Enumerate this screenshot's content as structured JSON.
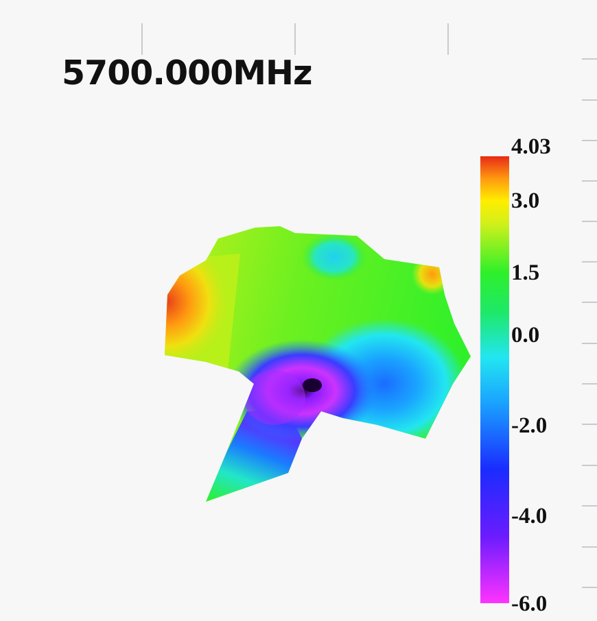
{
  "frequency_label": "5700.000MHz",
  "chart_data": {
    "type": "heatmap",
    "title": "5700.000MHz",
    "colorbar": {
      "min": -6.0,
      "max": 4.03,
      "tick_labels": [
        "4.03",
        "3.0",
        "1.5",
        "0.0",
        "-2.0",
        "-4.0",
        "-6.0"
      ],
      "tick_values": [
        4.03,
        3.0,
        1.5,
        0.0,
        -2.0,
        -4.0,
        -6.0
      ],
      "colormap": [
        {
          "value": -6.0,
          "color": "#ff33ff"
        },
        {
          "value": -4.0,
          "color": "#7a1fff"
        },
        {
          "value": -2.0,
          "color": "#1a2cff"
        },
        {
          "value": -1.0,
          "color": "#1a8cff"
        },
        {
          "value": 0.0,
          "color": "#22e6f0"
        },
        {
          "value": 1.0,
          "color": "#1ee86a"
        },
        {
          "value": 1.5,
          "color": "#2ef02a"
        },
        {
          "value": 2.3,
          "color": "#b8f01a"
        },
        {
          "value": 3.0,
          "color": "#ffee00"
        },
        {
          "value": 3.5,
          "color": "#ff9a10"
        },
        {
          "value": 4.03,
          "color": "#e82a16"
        }
      ]
    },
    "field_samples": [
      {
        "region": "left-lobe",
        "value": 3.9
      },
      {
        "region": "upper-left",
        "value": 2.6
      },
      {
        "region": "upper-center",
        "value": 1.8
      },
      {
        "region": "upper-dip",
        "value": 0.0
      },
      {
        "region": "right-body",
        "value": 1.5
      },
      {
        "region": "right-tip",
        "value": 3.7
      },
      {
        "region": "center-hole",
        "value": -6.0
      },
      {
        "region": "lower-center",
        "value": -4.0
      },
      {
        "region": "lower-right",
        "value": -0.5
      },
      {
        "region": "stem",
        "value": -0.2
      },
      {
        "region": "stem-tip",
        "value": 1.5
      }
    ]
  }
}
